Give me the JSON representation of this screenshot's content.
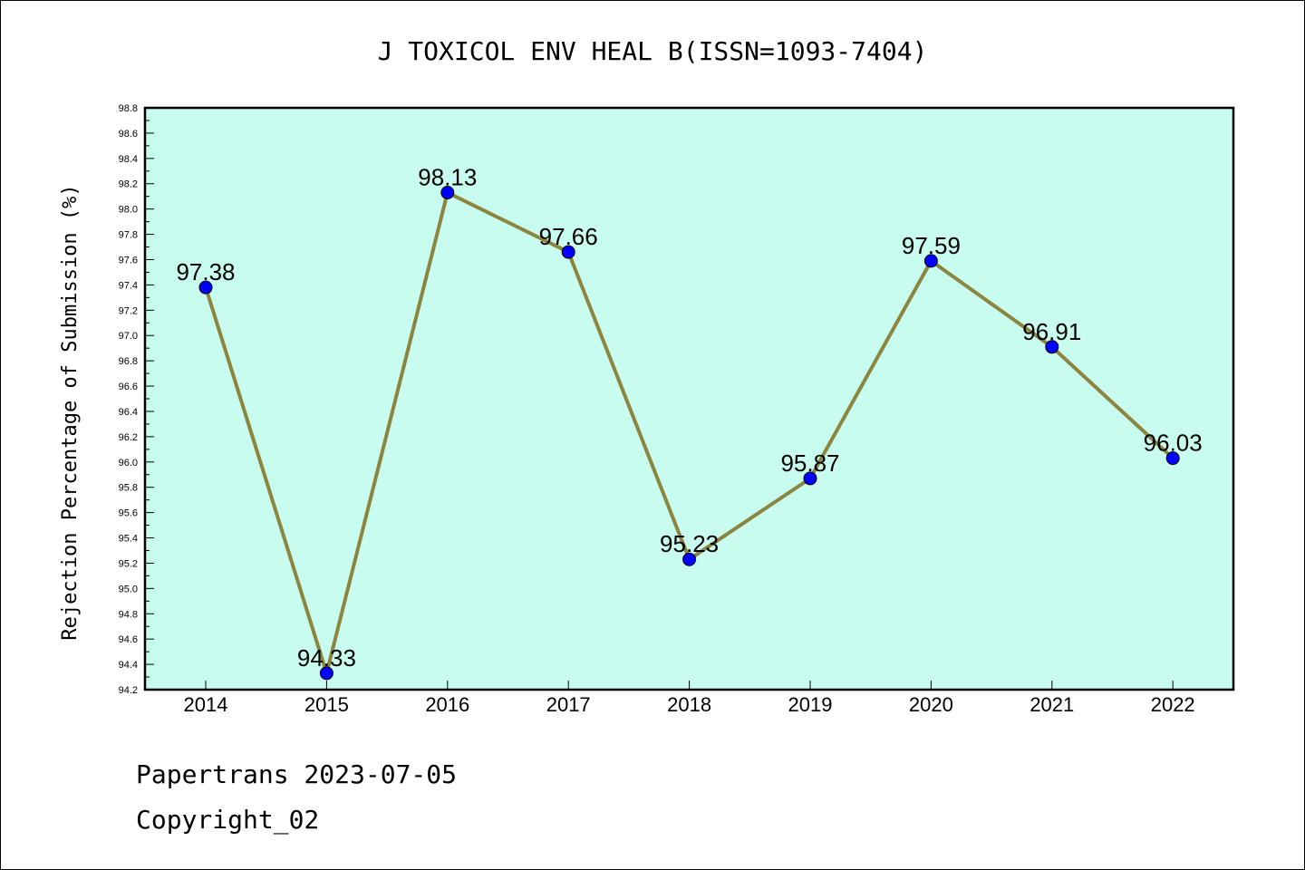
{
  "chart_data": {
    "type": "line",
    "title": "J TOXICOL ENV HEAL B(ISSN=1093-7404)",
    "ylabel": "Rejection Percentage of Submission (%)",
    "xlabel": "",
    "categories": [
      "2014",
      "2015",
      "2016",
      "2017",
      "2018",
      "2019",
      "2020",
      "2021",
      "2022"
    ],
    "values": [
      97.38,
      94.33,
      98.13,
      97.66,
      95.23,
      95.87,
      97.59,
      96.91,
      96.03
    ],
    "data_labels": [
      "97.38",
      "94.33",
      "98.13",
      "97.66",
      "95.23",
      "95.87",
      "97.59",
      "96.91",
      "96.03"
    ],
    "ylim": [
      94.2,
      98.8
    ],
    "yticks": [
      "94.2",
      "94.4",
      "94.6",
      "94.8",
      "95.0",
      "95.2",
      "95.4",
      "95.6",
      "95.8",
      "96.0",
      "96.2",
      "96.4",
      "96.6",
      "96.8",
      "97.0",
      "97.2",
      "97.4",
      "97.6",
      "97.8",
      "98.0",
      "98.2",
      "98.4",
      "98.6",
      "98.8"
    ],
    "grid": false,
    "colors": {
      "plot_background": "#c8fcee",
      "line": "#8b8540",
      "marker": "#0000ff"
    }
  },
  "footer": {
    "line1": "Papertrans 2023-07-05",
    "line2": "Copyright_02"
  }
}
